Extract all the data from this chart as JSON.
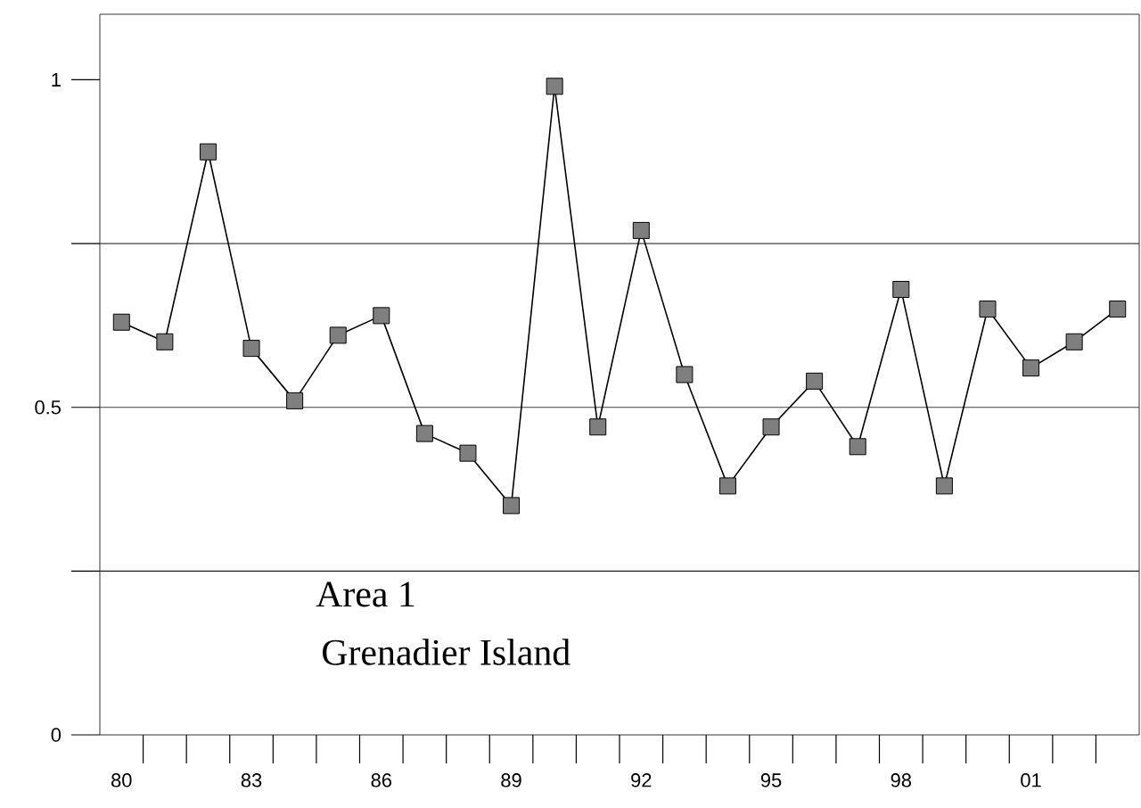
{
  "chart_data": {
    "type": "line",
    "categories": [
      "80",
      null,
      null,
      "83",
      null,
      null,
      "86",
      null,
      null,
      "89",
      null,
      null,
      "92",
      null,
      null,
      "95",
      null,
      null,
      "98",
      null,
      null,
      "01",
      null,
      null
    ],
    "series": [
      {
        "color": "#7f7f7f",
        "values": [
          0.63,
          0.6,
          0.89,
          0.59,
          0.51,
          0.61,
          0.64,
          0.46,
          0.43,
          0.35,
          0.99,
          0.47,
          0.77,
          0.55,
          0.38,
          0.47,
          0.54,
          0.44,
          0.68,
          0.38,
          0.65,
          0.56,
          0.6,
          0.65
        ]
      }
    ],
    "marker": "square",
    "line_style": "solid",
    "ylim": [
      0,
      1.1
    ],
    "yticks": [
      0,
      {
        "value": 0.25,
        "label": null
      },
      0.5,
      {
        "value": 0.75,
        "label": null
      },
      1
    ],
    "ref_lines": [
      {
        "axis": "y",
        "value": 0.25,
        "color": "#202020"
      },
      {
        "axis": "y",
        "value": 0.5,
        "color": "#404040"
      },
      {
        "axis": "y",
        "value": 0.75,
        "color": "#404040"
      }
    ],
    "annotations": [
      "Area  1",
      "Grenadier Island"
    ],
    "grid": false
  }
}
